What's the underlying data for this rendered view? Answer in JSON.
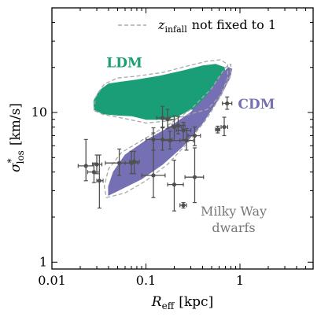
{
  "chart_data": {
    "type": "scatter",
    "x_scale": "log",
    "y_scale": "log",
    "xlim": [
      0.01,
      6.0
    ],
    "ylim": [
      0.9,
      50.0
    ],
    "xlabel_main": "R",
    "xlabel_sub": "eff",
    "xlabel_unit": "[kpc]",
    "ylabel_main": "σ",
    "ylabel_sup": "*",
    "ylabel_sub": "los",
    "ylabel_unit": "[km/s]",
    "x_ticks": [
      {
        "value": 0.01,
        "label": "0.01"
      },
      {
        "value": 0.1,
        "label": "0.1"
      },
      {
        "value": 1,
        "label": "1"
      }
    ],
    "y_ticks": [
      {
        "value": 1,
        "label": "1"
      },
      {
        "value": 10,
        "label": "10"
      }
    ],
    "legend": {
      "label_italic": "z",
      "label_sub": "infall",
      "label_rest": "not fixed to 1",
      "line_style": "dashed",
      "placement": "top-right"
    },
    "regions": [
      {
        "name": "LDM",
        "color": "#1a9e77",
        "label_at": [
          0.038,
          20.0
        ],
        "polygon": [
          [
            0.028,
            10.5
          ],
          [
            0.028,
            12.0
          ],
          [
            0.032,
            14.0
          ],
          [
            0.04,
            15.5
          ],
          [
            0.055,
            16.0
          ],
          [
            0.08,
            16.5
          ],
          [
            0.14,
            17.5
          ],
          [
            0.25,
            19.0
          ],
          [
            0.4,
            20.5
          ],
          [
            0.55,
            21.0
          ],
          [
            0.68,
            20.0
          ],
          [
            0.7,
            17.0
          ],
          [
            0.6,
            13.0
          ],
          [
            0.48,
            11.0
          ],
          [
            0.38,
            10.5
          ],
          [
            0.3,
            10.5
          ],
          [
            0.22,
            9.5
          ],
          [
            0.15,
            9.0
          ],
          [
            0.1,
            9.0
          ],
          [
            0.07,
            9.5
          ],
          [
            0.05,
            9.6
          ],
          [
            0.035,
            9.8
          ]
        ],
        "dashed_polygon": [
          [
            0.028,
            10.3
          ],
          [
            0.029,
            12.6
          ],
          [
            0.036,
            15.5
          ],
          [
            0.05,
            17.0
          ],
          [
            0.08,
            17.5
          ],
          [
            0.15,
            18.5
          ],
          [
            0.28,
            20.5
          ],
          [
            0.45,
            22.0
          ],
          [
            0.62,
            22.5
          ],
          [
            0.74,
            21.0
          ],
          [
            0.74,
            17.0
          ],
          [
            0.62,
            13.0
          ],
          [
            0.45,
            10.5
          ],
          [
            0.3,
            9.8
          ],
          [
            0.18,
            8.8
          ],
          [
            0.1,
            8.5
          ],
          [
            0.06,
            9.1
          ],
          [
            0.035,
            9.7
          ]
        ]
      },
      {
        "name": "CDM",
        "color": "#7570b3",
        "label_at": [
          0.95,
          10.6
        ],
        "polygon": [
          [
            0.04,
            2.8
          ],
          [
            0.05,
            3.0
          ],
          [
            0.09,
            3.6
          ],
          [
            0.15,
            4.5
          ],
          [
            0.25,
            6.0
          ],
          [
            0.4,
            8.5
          ],
          [
            0.6,
            12.5
          ],
          [
            0.78,
            17.0
          ],
          [
            0.82,
            19.5
          ],
          [
            0.75,
            20.0
          ],
          [
            0.62,
            17.5
          ],
          [
            0.45,
            13.0
          ],
          [
            0.3,
            10.0
          ],
          [
            0.18,
            8.0
          ],
          [
            0.1,
            6.5
          ],
          [
            0.06,
            5.2
          ],
          [
            0.045,
            4.0
          ],
          [
            0.04,
            3.2
          ]
        ],
        "dashed_polygon": [
          [
            0.038,
            2.7
          ],
          [
            0.06,
            2.9
          ],
          [
            0.1,
            3.5
          ],
          [
            0.17,
            4.5
          ],
          [
            0.28,
            6.3
          ],
          [
            0.45,
            9.2
          ],
          [
            0.65,
            13.5
          ],
          [
            0.8,
            18.0
          ],
          [
            0.8,
            21.0
          ],
          [
            0.7,
            20.0
          ],
          [
            0.5,
            14.5
          ],
          [
            0.3,
            10.5
          ],
          [
            0.17,
            8.2
          ],
          [
            0.09,
            6.5
          ],
          [
            0.055,
            5.4
          ],
          [
            0.04,
            4.2
          ],
          [
            0.036,
            3.2
          ]
        ]
      }
    ],
    "annotation": {
      "lines": [
        "Milky Way",
        "dwarfs"
      ],
      "color": "#777777",
      "placement": "lower-right"
    },
    "points": [
      {
        "x": 0.023,
        "y": 4.4,
        "xerr": [
          0.004,
          0.005
        ],
        "yerr": [
          0.9,
          2.2
        ]
      },
      {
        "x": 0.028,
        "y": 4.0,
        "xerr": [
          0.004,
          0.004
        ],
        "yerr": [
          0.6,
          0.6
        ]
      },
      {
        "x": 0.03,
        "y": 4.5,
        "xerr": [
          0.003,
          0.004
        ],
        "yerr": [
          0.6,
          0.7
        ]
      },
      {
        "x": 0.032,
        "y": 3.5,
        "xerr": [
          0.002,
          0.003
        ],
        "yerr": [
          1.2,
          1.7
        ]
      },
      {
        "x": 0.052,
        "y": 4.6,
        "xerr": [
          0.015,
          0.02
        ],
        "yerr": [
          0.8,
          1.1
        ]
      },
      {
        "x": 0.075,
        "y": 4.7,
        "xerr": [
          0.008,
          0.01
        ],
        "yerr": [
          0.8,
          0.8
        ]
      },
      {
        "x": 0.07,
        "y": 4.6,
        "xerr": [
          0.01,
          0.012
        ],
        "yerr": [
          0.7,
          0.9
        ]
      },
      {
        "x": 0.12,
        "y": 3.8,
        "xerr": [
          0.03,
          0.04
        ],
        "yerr": [
          1.1,
          3.5
        ]
      },
      {
        "x": 0.2,
        "y": 3.3,
        "xerr": [
          0.03,
          0.05
        ],
        "yerr": [
          1.1,
          1.5
        ]
      },
      {
        "x": 0.25,
        "y": 2.4,
        "xerr": [
          0.02,
          0.02
        ],
        "yerr": [
          0.1,
          0.1
        ]
      },
      {
        "x": 0.33,
        "y": 3.7,
        "xerr": [
          0.07,
          0.08
        ],
        "yerr": [
          1.2,
          2.1
        ]
      },
      {
        "x": 0.15,
        "y": 9.2,
        "xerr": [
          0.02,
          0.03
        ],
        "yerr": [
          1.3,
          1.8
        ]
      },
      {
        "x": 0.17,
        "y": 9.0,
        "xerr": [
          0.02,
          0.03
        ],
        "yerr": [
          1.2,
          1.5
        ]
      },
      {
        "x": 0.2,
        "y": 8.0,
        "xerr": [
          0.03,
          0.04
        ],
        "yerr": [
          1.5,
          1.5
        ]
      },
      {
        "x": 0.22,
        "y": 8.2,
        "xerr": [
          0.03,
          0.04
        ],
        "yerr": [
          1.0,
          1.2
        ]
      },
      {
        "x": 0.25,
        "y": 7.6,
        "xerr": [
          0.04,
          0.05
        ],
        "yerr": [
          1.0,
          1.0
        ]
      },
      {
        "x": 0.12,
        "y": 6.6,
        "xerr": [
          0.02,
          0.03
        ],
        "yerr": [
          1.0,
          1.3
        ]
      },
      {
        "x": 0.15,
        "y": 6.6,
        "xerr": [
          0.03,
          0.04
        ],
        "yerr": [
          1.0,
          1.4
        ]
      },
      {
        "x": 0.18,
        "y": 6.5,
        "xerr": [
          0.03,
          0.05
        ],
        "yerr": [
          0.8,
          1.0
        ]
      },
      {
        "x": 0.27,
        "y": 6.5,
        "xerr": [
          0.04,
          0.05
        ],
        "yerr": [
          0.9,
          1.3
        ]
      },
      {
        "x": 0.33,
        "y": 7.0,
        "xerr": [
          0.05,
          0.05
        ],
        "yerr": [
          1.0,
          1.0
        ]
      },
      {
        "x": 0.58,
        "y": 7.7,
        "xerr": [
          0.03,
          0.03
        ],
        "yerr": [
          0.4,
          0.4
        ]
      },
      {
        "x": 0.68,
        "y": 8.0,
        "xerr": [
          0.05,
          0.06
        ],
        "yerr": [
          1.0,
          1.3
        ]
      },
      {
        "x": 0.73,
        "y": 11.5,
        "xerr": [
          0.08,
          0.09
        ],
        "yerr": [
          1.0,
          1.2
        ]
      }
    ]
  }
}
